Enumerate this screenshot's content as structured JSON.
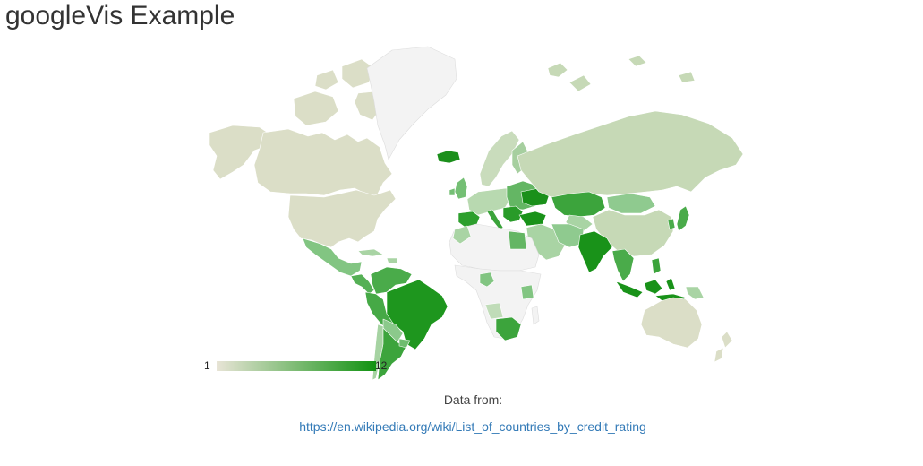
{
  "page": {
    "title": "googleVis Example"
  },
  "geochart": {
    "colors": {
      "low": "#e8e4d6",
      "high": "#119211",
      "no_data": "#f3f3f3",
      "border": "#cccccc"
    },
    "legend": {
      "min_label": "1",
      "max_label": "12"
    }
  },
  "source": {
    "label": "Data from:",
    "link_text": "https://en.wikipedia.org/wiki/List_of_countries_by_credit_rating"
  }
}
